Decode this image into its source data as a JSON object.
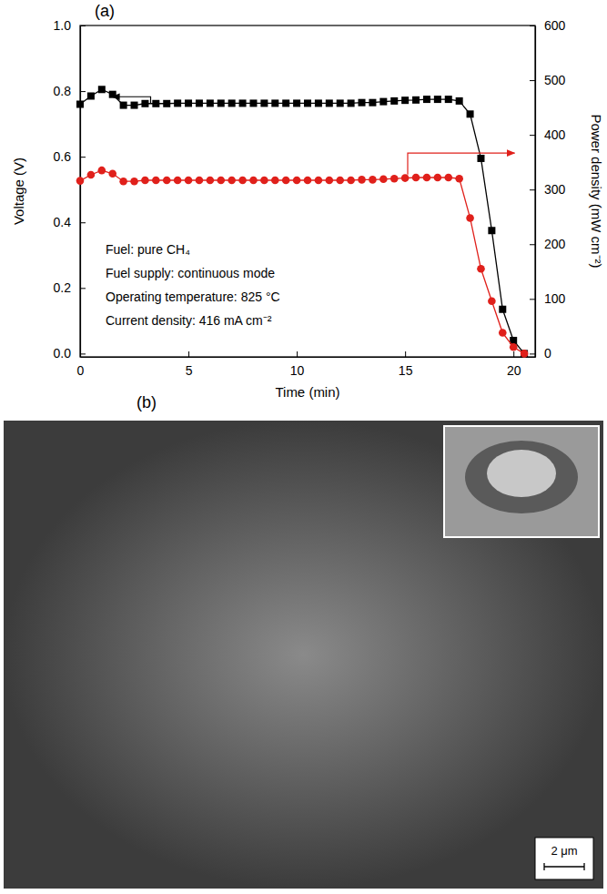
{
  "chart_data": {
    "type": "line",
    "panel_label": "(a)",
    "x_label": "Time (min)",
    "y_label": "Voltage (V)",
    "y2_label": "Power density (mW cm⁻²)",
    "annotations": [
      "Fuel: pure CH₄",
      "Fuel supply: continuous mode",
      "Operating temperature: 825 °C",
      "Current density: 416 mA cm⁻²"
    ],
    "x": [
      0,
      0.5,
      1,
      1.5,
      2,
      2.5,
      3,
      3.5,
      4,
      4.5,
      5,
      5.5,
      6,
      6.5,
      7,
      7.5,
      8,
      8.5,
      9,
      9.5,
      10,
      10.5,
      11,
      11.5,
      12,
      12.5,
      13,
      13.5,
      14,
      14.5,
      15,
      15.5,
      16,
      16.5,
      17,
      17.5,
      18,
      18.5,
      19,
      19.5,
      20,
      20.5
    ],
    "series": [
      {
        "name": "Voltage",
        "color": "#000000",
        "marker": "square",
        "values": [
          0.76,
          0.785,
          0.805,
          0.79,
          0.757,
          0.757,
          0.762,
          0.762,
          0.762,
          0.763,
          0.763,
          0.763,
          0.763,
          0.763,
          0.763,
          0.763,
          0.763,
          0.763,
          0.763,
          0.763,
          0.763,
          0.763,
          0.763,
          0.763,
          0.763,
          0.763,
          0.765,
          0.765,
          0.768,
          0.77,
          0.772,
          0.773,
          0.775,
          0.775,
          0.775,
          0.77,
          0.73,
          0.595,
          0.375,
          0.135,
          0.04,
          0.0
        ]
      },
      {
        "name": "Power density",
        "color": "#e0201b",
        "marker": "circle",
        "axis": "y2",
        "values": [
          316,
          327,
          335,
          329,
          315,
          315,
          317,
          317,
          317,
          317,
          317,
          317,
          317,
          317,
          317,
          317,
          317,
          317,
          317,
          317,
          317,
          317,
          317,
          317,
          317,
          317,
          318,
          318,
          319,
          320,
          321,
          322,
          322,
          322,
          322,
          320,
          248,
          155,
          96,
          38,
          12,
          0
        ]
      }
    ],
    "xlim": [
      0,
      21
    ],
    "xticks": [
      0,
      5,
      10,
      15,
      20
    ],
    "ylim": [
      -0.01,
      1.0
    ],
    "yticks": [
      {
        "value": 0,
        "label": "0.0"
      },
      {
        "value": 0.2,
        "label": "0.2"
      },
      {
        "value": 0.4,
        "label": "0.4"
      },
      {
        "value": 0.6,
        "label": "0.6"
      },
      {
        "value": 0.8,
        "label": "0.8"
      },
      {
        "value": 1.0,
        "label": "1.0"
      }
    ],
    "y2lim": [
      -6,
      600
    ],
    "y2ticks": [
      0,
      100,
      200,
      300,
      400,
      500,
      600
    ],
    "grid": false,
    "tick_labels": true
  },
  "panel_b": {
    "label": "(b)",
    "scale_bar": "2 μm"
  }
}
